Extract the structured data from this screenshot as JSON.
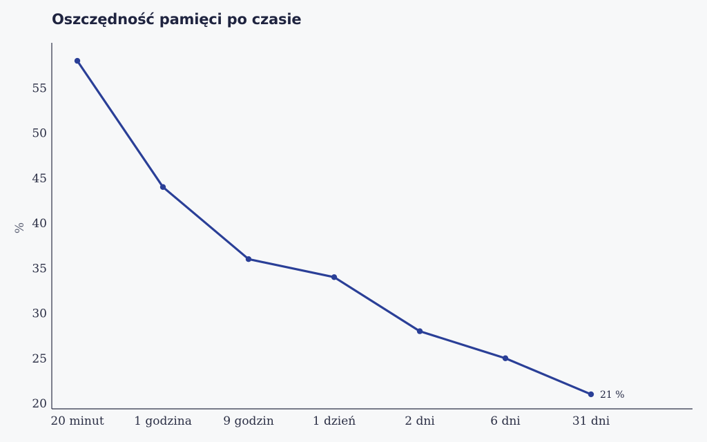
{
  "chart_data": {
    "type": "line",
    "title": "Oszczędność pamięci po czasie",
    "xlabel": "",
    "ylabel": "%",
    "categories": [
      "20 minut",
      "1 godzina",
      "9 godzin",
      "1 dzień",
      "2 dni",
      "6 dni",
      "31 dni"
    ],
    "values": [
      58,
      44,
      36,
      34,
      28,
      25,
      21
    ],
    "ylim": [
      20,
      59.5
    ],
    "yticks": [
      20,
      25,
      30,
      35,
      40,
      45,
      50,
      55
    ],
    "grid": false,
    "annotations": [
      {
        "index": 6,
        "text": "21 %"
      }
    ],
    "colors": {
      "line": "#2a3f97",
      "axis": "#2b2f45"
    }
  }
}
